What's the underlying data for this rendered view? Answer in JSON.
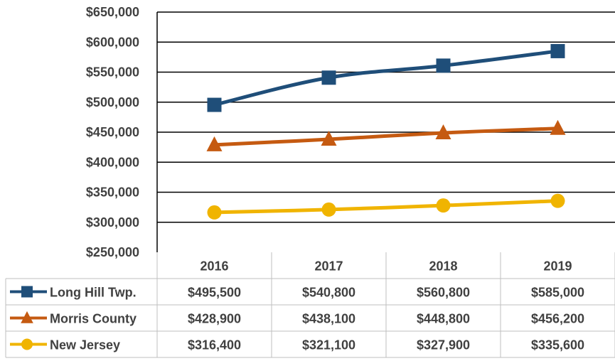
{
  "chart_data": {
    "type": "line",
    "title": "",
    "xlabel": "",
    "ylabel": "",
    "categories": [
      "2016",
      "2017",
      "2018",
      "2019"
    ],
    "ylim": [
      250000,
      650000
    ],
    "ytick_values": [
      250000,
      300000,
      350000,
      400000,
      450000,
      500000,
      550000,
      600000,
      650000
    ],
    "ytick_labels": [
      "$250,000",
      "$300,000",
      "$350,000",
      "$400,000",
      "$450,000",
      "$500,000",
      "$550,000",
      "$600,000",
      "$650,000"
    ],
    "grid": true,
    "legend": "data-table",
    "series": [
      {
        "name": "Long Hill Twp.",
        "color": "#1F4E79",
        "marker": "square",
        "values": [
          495500,
          540800,
          560800,
          585000
        ],
        "labels": [
          "$495,500",
          "$540,800",
          "$560,800",
          "$585,000"
        ]
      },
      {
        "name": "Morris County",
        "color": "#C55A11",
        "marker": "triangle",
        "values": [
          428900,
          438100,
          448800,
          456200
        ],
        "labels": [
          "$428,900",
          "$438,100",
          "$448,800",
          "$456,200"
        ]
      },
      {
        "name": "New Jersey",
        "color": "#F0B400",
        "marker": "circle",
        "values": [
          316400,
          321100,
          327900,
          335600
        ],
        "labels": [
          "$316,400",
          "$321,100",
          "$327,900",
          "$335,600"
        ]
      }
    ]
  }
}
